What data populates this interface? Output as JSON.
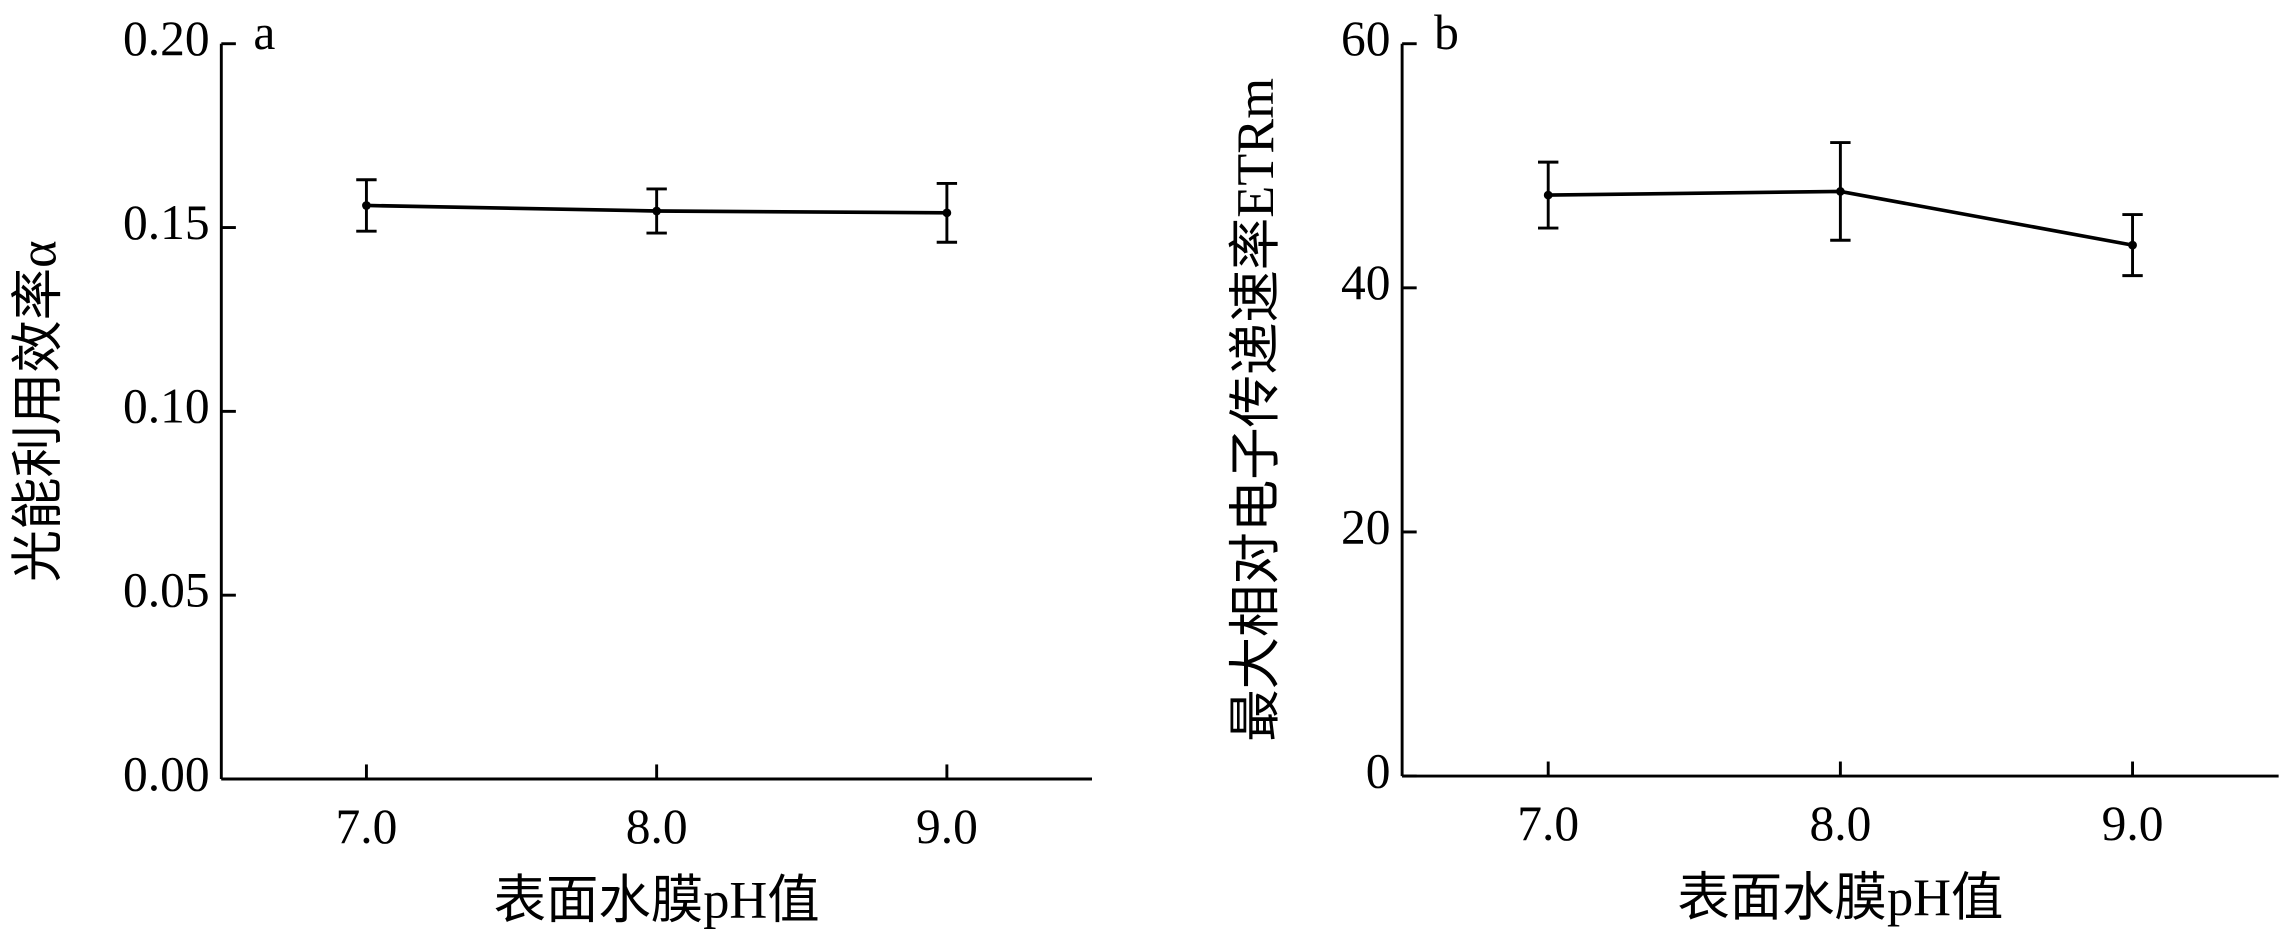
{
  "chart_data": [
    {
      "type": "line",
      "panel_label": "a",
      "x_label": "表面水膜pH值",
      "y_label": "光能利用效率α",
      "x": [
        7,
        8,
        9
      ],
      "series": [
        {
          "color": "#000000",
          "values": [
            0.156,
            0.1545,
            0.154
          ],
          "errors": [
            0.007,
            0.006,
            0.008
          ]
        }
      ],
      "xlim": [
        6.5,
        9.5
      ],
      "xticks": [
        {
          "value": 7,
          "label": "7.0"
        },
        {
          "value": 8,
          "label": "8.0"
        },
        {
          "value": 9,
          "label": "9.0"
        }
      ],
      "ylim": [
        0,
        0.2
      ],
      "yticks": [
        {
          "value": 0,
          "label": "0.00"
        },
        0.05,
        {
          "value": 0.1,
          "label": "0.10"
        },
        0.15,
        {
          "value": 0.2,
          "label": "0.20"
        }
      ]
    },
    {
      "type": "line",
      "panel_label": "b",
      "x_label": "表面水膜pH值",
      "y_label": "最大相对电子传递速率ETRm",
      "x": [
        7,
        8,
        9
      ],
      "series": [
        {
          "color": "#000000",
          "values": [
            47.6,
            47.9,
            43.5
          ],
          "errors": [
            2.7,
            4.0,
            2.5
          ]
        }
      ],
      "xlim": [
        6.5,
        9.5
      ],
      "xticks": [
        {
          "value": 7,
          "label": "7.0"
        },
        {
          "value": 8,
          "label": "8.0"
        },
        {
          "value": 9,
          "label": "9.0"
        }
      ],
      "ylim": [
        0,
        60
      ],
      "yticks": [
        0,
        20,
        40,
        60
      ]
    }
  ]
}
